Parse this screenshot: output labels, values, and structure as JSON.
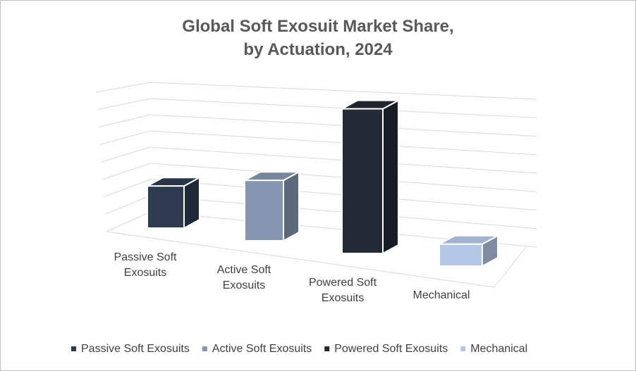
{
  "chart_data": {
    "type": "bar3d",
    "title": "Global Soft Exosuit Market Share, by Actuation, 2024",
    "categories": [
      "Passive Soft Exosuits",
      "Active Soft Exosuits",
      "Powered Soft Exosuits",
      "Mechanical"
    ],
    "series": [
      {
        "name": "Passive Soft Exosuits",
        "color": "#2e3a4f"
      },
      {
        "name": "Active Soft Exosuits",
        "color": "#8496b0"
      },
      {
        "name": "Powered Soft Exosuits",
        "color": "#222a35"
      },
      {
        "name": "Mechanical",
        "color": "#b4c7e7"
      }
    ],
    "values": [
      2.3,
      3.3,
      7.9,
      1.2
    ],
    "ylim": [
      0,
      8
    ],
    "yticks": [
      0,
      1,
      2,
      3,
      4,
      5,
      6,
      7,
      8
    ],
    "grid": true,
    "legend": "bottom"
  }
}
